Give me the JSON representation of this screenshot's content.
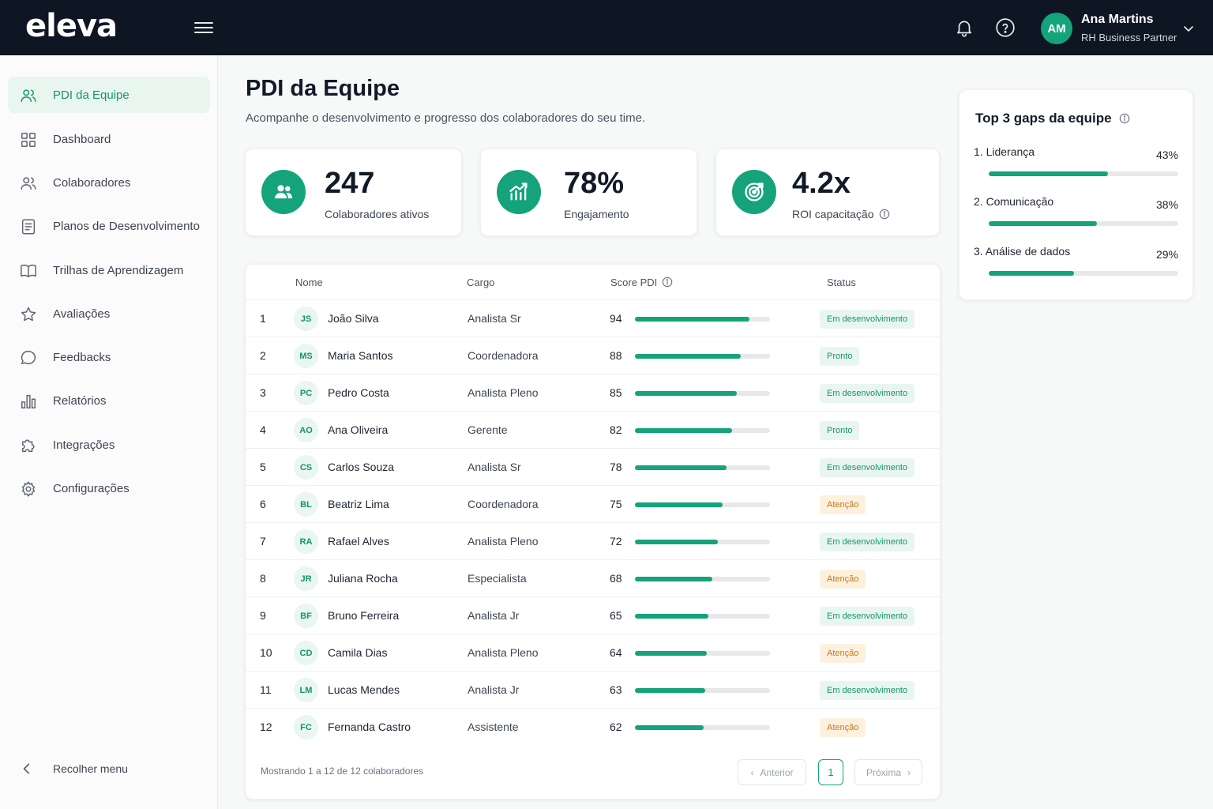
{
  "brand": {
    "logo": "eleva",
    "accent": "#14a37a",
    "topbar_bg": "#0e1624"
  },
  "user": {
    "initials": "AM",
    "name": "Ana Martins",
    "role": "RH Business Partner"
  },
  "topbar_icons": [
    "menu-icon",
    "bell-icon",
    "help-icon",
    "chevron-down-icon"
  ],
  "sidebar": {
    "items": [
      {
        "label": "PDI da Equipe",
        "icon": "users-icon",
        "active": true
      },
      {
        "label": "Dashboard",
        "icon": "grid-icon"
      },
      {
        "label": "Colaboradores",
        "icon": "users-icon"
      },
      {
        "label": "Planos de Desenvolvimento",
        "icon": "document-icon"
      },
      {
        "label": "Trilhas de Aprendizagem",
        "icon": "book-icon"
      },
      {
        "label": "Avaliações",
        "icon": "star-icon"
      },
      {
        "label": "Feedbacks",
        "icon": "chat-icon"
      },
      {
        "label": "Relatórios",
        "icon": "bar-chart-icon"
      },
      {
        "label": "Integrações",
        "icon": "puzzle-icon"
      },
      {
        "label": "Configurações",
        "icon": "gear-icon"
      }
    ],
    "collapse_label": "Recolher menu"
  },
  "page": {
    "title": "PDI da Equipe",
    "subtitle": "Acompanhe o desenvolvimento e progresso dos colaboradores do seu time."
  },
  "stats": [
    {
      "value": "247",
      "label": "Colaboradores ativos",
      "icon": "users-icon"
    },
    {
      "value": "78%",
      "label": "Engajamento",
      "icon": "growth-chart-icon"
    },
    {
      "value": "4.2x",
      "label": "ROI capacitação",
      "icon": "target-icon"
    }
  ],
  "table": {
    "headers": {
      "name": "Nome",
      "role": "Cargo",
      "score": "Score PDI",
      "status": "Status"
    },
    "rows": [
      {
        "rank": "1",
        "initials": "JS",
        "name": "João Silva",
        "role": "Analista Sr",
        "score": 94,
        "status": "Em desenvolvimento",
        "status_type": "dev"
      },
      {
        "rank": "2",
        "initials": "MS",
        "name": "Maria Santos",
        "role": "Coordenadora",
        "score": 88,
        "status": "Pronto",
        "status_type": "ok"
      },
      {
        "rank": "3",
        "initials": "PC",
        "name": "Pedro Costa",
        "role": "Analista Pleno",
        "score": 85,
        "status": "Em desenvolvimento",
        "status_type": "dev"
      },
      {
        "rank": "4",
        "initials": "AO",
        "name": "Ana Oliveira",
        "role": "Gerente",
        "score": 82,
        "status": "Pronto",
        "status_type": "ok"
      },
      {
        "rank": "5",
        "initials": "CS",
        "name": "Carlos Souza",
        "role": "Analista Sr",
        "score": 78,
        "status": "Em desenvolvimento",
        "status_type": "dev"
      },
      {
        "rank": "6",
        "initials": "BL",
        "name": "Beatriz Lima",
        "role": "Coordenadora",
        "score": 75,
        "status": "Atenção",
        "status_type": "warn"
      },
      {
        "rank": "7",
        "initials": "RA",
        "name": "Rafael Alves",
        "role": "Analista Pleno",
        "score": 72,
        "status": "Em desenvolvimento",
        "status_type": "dev"
      },
      {
        "rank": "8",
        "initials": "JR",
        "name": "Juliana Rocha",
        "role": "Especialista",
        "score": 68,
        "status": "Atenção",
        "status_type": "warn"
      },
      {
        "rank": "9",
        "initials": "BF",
        "name": "Bruno Ferreira",
        "role": "Analista Jr",
        "score": 65,
        "status": "Em desenvolvimento",
        "status_type": "dev"
      },
      {
        "rank": "10",
        "initials": "CD",
        "name": "Camila Dias",
        "role": "Analista Pleno",
        "score": 64,
        "status": "Atenção",
        "status_type": "warn"
      },
      {
        "rank": "11",
        "initials": "LM",
        "name": "Lucas Mendes",
        "role": "Analista Jr",
        "score": 63,
        "status": "Em desenvolvimento",
        "status_type": "dev"
      },
      {
        "rank": "12",
        "initials": "FC",
        "name": "Fernanda Castro",
        "role": "Assistente",
        "score": 62,
        "status": "Atenção",
        "status_type": "warn"
      }
    ],
    "footer": "Mostrando 1 a 12 de 12 colaboradores",
    "pagination": {
      "prev": "Anterior",
      "current": "1",
      "next": "Próxima"
    }
  },
  "gaps": {
    "title": "Top 3 gaps da equipe",
    "items": [
      {
        "label": "1.  Liderança",
        "pct": "43%",
        "fill": 0.63
      },
      {
        "label": "2.  Comunicação",
        "pct": "38%",
        "fill": 0.57
      },
      {
        "label": "3.  Análise de dados",
        "pct": "29%",
        "fill": 0.45
      }
    ]
  }
}
